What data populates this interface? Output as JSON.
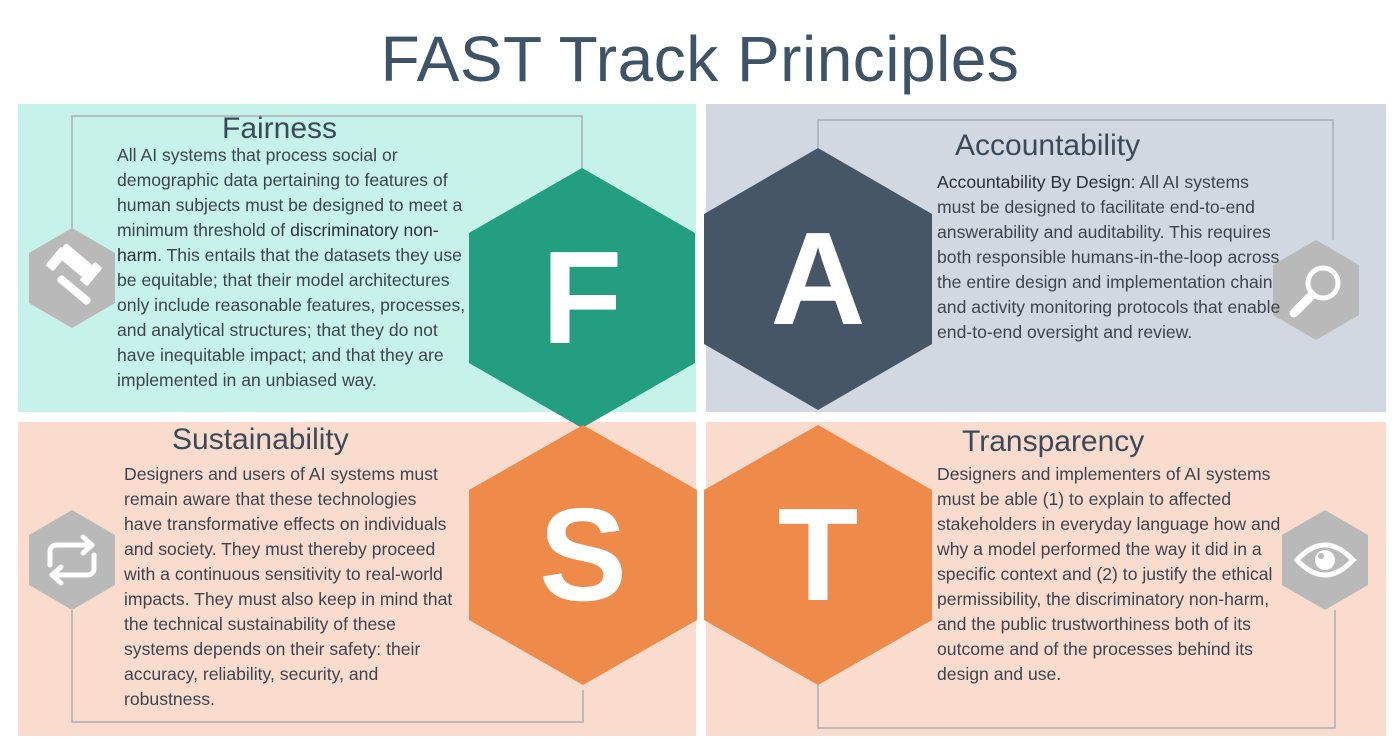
{
  "title": "FAST Track Principles",
  "fairness": {
    "heading": "Fairness",
    "letter": "F",
    "text_pre": "All AI systems that process social or demographic data pertaining to features of human subjects must be designed to meet a minimum threshold of ",
    "text_emph": "discriminatory non-harm",
    "text_post": ". This entails that the datasets they use be equitable; that their model architectures only include reasonable features, processes, and analytical structures; that they do not have inequitable impact; and that they are implemented in an unbiased way.",
    "icon": "gavel-icon"
  },
  "accountability": {
    "heading": "Accountability",
    "letter": "A",
    "text_emph": "Accountability By Design",
    "text_post": ": All AI systems must be designed to facilitate end-to-end answerability and auditability. This requires both responsible humans-in-the-loop across the entire design and implementation chain and activity monitoring protocols that enable end-to-end oversight and review.",
    "icon": "magnifier-icon"
  },
  "sustainability": {
    "heading": "Sustainability",
    "letter": "S",
    "text": "Designers and users of AI systems must remain aware that these technologies have transformative effects on individuals and society. They must thereby proceed with a continuous sensitivity to real-world impacts. They must also keep in mind that the technical sustainability of these systems depends on their safety: their accuracy, reliability, security, and robustness.",
    "icon": "repeat-arrows-icon"
  },
  "transparency": {
    "heading": "Transparency",
    "letter": "T",
    "text": "Designers and implementers of AI systems must be able (1) to explain to affected stakeholders in everyday language how and why a model performed the way it did in a specific context and (2) to justify the ethical permissibility, the discriminatory non-harm, and the public trustworthiness both of its outcome and of the processes behind its design and use.",
    "icon": "eye-icon"
  },
  "colors": {
    "fairness_hex": "#239e81",
    "accountability_hex": "#465666",
    "sustainability_hex": "#ee8a4a",
    "transparency_hex": "#ee8a4a",
    "icon_hex": "#b9b9b9"
  }
}
